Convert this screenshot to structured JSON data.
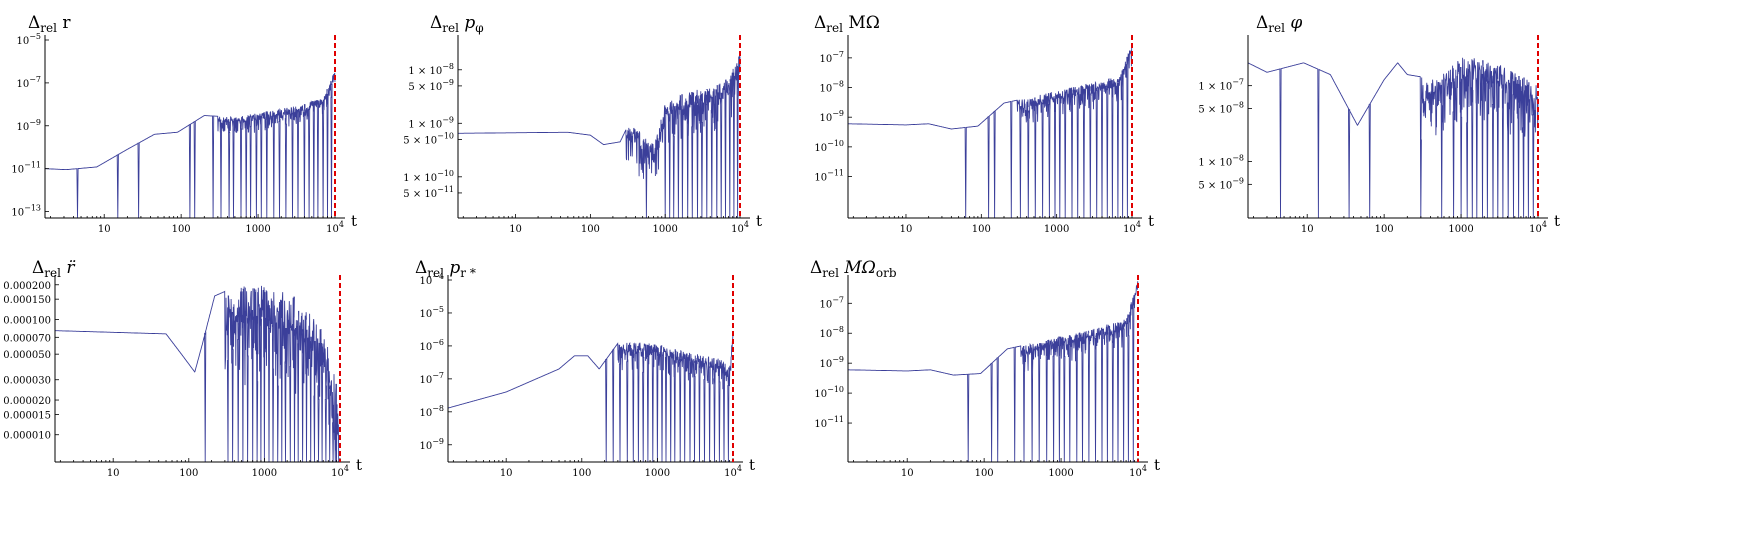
{
  "chart_data": [
    {
      "type": "line",
      "title": {
        "base": "Δ",
        "sub": "rel",
        "symbol": " r"
      },
      "xlabel": "t",
      "xscale": "log",
      "yscale": "log",
      "xlim": [
        1.7,
        10000
      ],
      "ylim": [
        5e-14,
        1e-05
      ],
      "xticks": [
        {
          "v": 10,
          "label": "10"
        },
        {
          "v": 100,
          "label": "100"
        },
        {
          "v": 1000,
          "label": "1000"
        },
        {
          "v": 10000,
          "label": "10",
          "exp": "4"
        }
      ],
      "yticks": [
        {
          "v": 1e-13,
          "label": "10",
          "exp": "−13"
        },
        {
          "v": 1e-11,
          "label": "10",
          "exp": "−11"
        },
        {
          "v": 1e-09,
          "label": "10",
          "exp": "−9"
        },
        {
          "v": 1e-07,
          "label": "10",
          "exp": "−7"
        },
        {
          "v": 1e-05,
          "label": "10",
          "exp": "−5"
        }
      ],
      "marker_x": 10000,
      "series": [
        {
          "dips": [
            4.5,
            15,
            28,
            130,
            150,
            260,
            330,
            420,
            480,
            600,
            700,
            800,
            950,
            1100,
            1300,
            1600,
            1900,
            2300,
            2800,
            3300,
            4000,
            4600,
            5300,
            6000,
            7000,
            8000,
            9000
          ],
          "envelope": [
            [
              1.7,
              1e-11
            ],
            [
              3.2,
              9e-12
            ],
            [
              8,
              1.2e-11
            ],
            [
              20,
              8e-11
            ],
            [
              45,
              4e-10
            ],
            [
              90,
              5e-10
            ],
            [
              200,
              3e-09
            ],
            [
              500,
              2.5e-09
            ],
            [
              1000,
              4e-09
            ],
            [
              3000,
              8e-09
            ],
            [
              7000,
              2e-08
            ],
            [
              10000,
              4e-07
            ]
          ]
        }
      ]
    },
    {
      "type": "line",
      "title": {
        "base": "Δ",
        "sub": "rel",
        "symbol": " p",
        "sym_sub": "φ"
      },
      "xlabel": "t",
      "xscale": "log",
      "yscale": "log",
      "xlim": [
        1.7,
        10000
      ],
      "ylim": [
        1.7e-11,
        3.6e-08
      ],
      "xticks": [
        {
          "v": 10,
          "label": "10"
        },
        {
          "v": 100,
          "label": "100"
        },
        {
          "v": 1000,
          "label": "1000"
        },
        {
          "v": 10000,
          "label": "10",
          "exp": "4"
        }
      ],
      "yticks": [
        {
          "v": 5e-11,
          "label": "5 × 10",
          "exp": "−11"
        },
        {
          "v": 1e-10,
          "label": "1 × 10",
          "exp": "−10"
        },
        {
          "v": 5e-10,
          "label": "5 × 10",
          "exp": "−10"
        },
        {
          "v": 1e-09,
          "label": "1 × 10",
          "exp": "−9"
        },
        {
          "v": 5e-09,
          "label": "5 × 10",
          "exp": "−9"
        },
        {
          "v": 1e-08,
          "label": "1 × 10",
          "exp": "−8"
        }
      ],
      "marker_x": 10000,
      "series": [
        {
          "dips": [
            560,
            1000,
            1150,
            1300,
            1500,
            1700,
            2000,
            2300,
            2700,
            3100,
            3600,
            4200,
            4900,
            5600,
            6400,
            7300,
            8300,
            9300
          ],
          "envelope": [
            [
              1.7,
              6.5e-10
            ],
            [
              50,
              6.8e-10
            ],
            [
              100,
              6e-10
            ],
            [
              150,
              4e-10
            ],
            [
              250,
              4.5e-10
            ],
            [
              350,
              1.2e-09
            ],
            [
              500,
              6e-10
            ],
            [
              700,
              4e-10
            ],
            [
              1000,
              2.5e-09
            ],
            [
              2000,
              4e-09
            ],
            [
              4000,
              5e-09
            ],
            [
              7000,
              7e-09
            ],
            [
              10000,
              2e-08
            ]
          ]
        }
      ]
    },
    {
      "type": "line",
      "title": {
        "base": "Δ",
        "sub": "rel",
        "symbol": " MΩ"
      },
      "xlabel": "t",
      "xscale": "log",
      "yscale": "log",
      "xlim": [
        1.7,
        10000
      ],
      "ylim": [
        4e-13,
        4e-07
      ],
      "xticks": [
        {
          "v": 10,
          "label": "10"
        },
        {
          "v": 100,
          "label": "100"
        },
        {
          "v": 1000,
          "label": "1000"
        },
        {
          "v": 10000,
          "label": "10",
          "exp": "4"
        }
      ],
      "yticks": [
        {
          "v": 1e-11,
          "label": "10",
          "exp": "−11"
        },
        {
          "v": 1e-10,
          "label": "10",
          "exp": "−10"
        },
        {
          "v": 1e-09,
          "label": "10",
          "exp": "−9"
        },
        {
          "v": 1e-08,
          "label": "10",
          "exp": "−8"
        },
        {
          "v": 1e-07,
          "label": "10",
          "exp": "−7"
        }
      ],
      "marker_x": 10000,
      "series": [
        {
          "dips": [
            62,
            125,
            150,
            250,
            330,
            420,
            520,
            650,
            800,
            950,
            1100,
            1300,
            1600,
            1900,
            2300,
            2800,
            3400,
            4000,
            4700,
            5500,
            6500,
            7500,
            8700
          ],
          "envelope": [
            [
              1.7,
              6e-10
            ],
            [
              10,
              5.5e-10
            ],
            [
              20,
              6e-10
            ],
            [
              40,
              4e-10
            ],
            [
              90,
              5e-10
            ],
            [
              200,
              3e-09
            ],
            [
              500,
              5e-09
            ],
            [
              1000,
              8e-09
            ],
            [
              3000,
              1.5e-08
            ],
            [
              7000,
              2.5e-08
            ],
            [
              10000,
              4e-07
            ]
          ]
        }
      ]
    },
    {
      "type": "line",
      "title": {
        "base": "Δ",
        "sub": "rel",
        "symbol": " φ"
      },
      "xlabel": "t",
      "xscale": "log",
      "yscale": "log",
      "xlim": [
        1.7,
        10000
      ],
      "ylim": [
        1.8e-09,
        4e-07
      ],
      "xticks": [
        {
          "v": 10,
          "label": "10"
        },
        {
          "v": 100,
          "label": "100"
        },
        {
          "v": 1000,
          "label": "1000"
        },
        {
          "v": 10000,
          "label": "10",
          "exp": "4"
        }
      ],
      "yticks": [
        {
          "v": 5e-09,
          "label": "5 × 10",
          "exp": "−9"
        },
        {
          "v": 1e-08,
          "label": "1 × 10",
          "exp": "−8"
        },
        {
          "v": 5e-08,
          "label": "5 × 10",
          "exp": "−8"
        },
        {
          "v": 1e-07,
          "label": "1 × 10",
          "exp": "−7"
        }
      ],
      "marker_x": 10000,
      "series": [
        {
          "dips": [
            4.5,
            14,
            35,
            65,
            300,
            560,
            800,
            1000,
            1200,
            1400,
            1600,
            1900,
            2200,
            2600,
            3000,
            3500,
            4100,
            4800,
            5600,
            6500,
            7500,
            8700
          ],
          "envelope": [
            [
              1.7,
              2e-07
            ],
            [
              3,
              1.5e-07
            ],
            [
              9,
              2e-07
            ],
            [
              20,
              1.4e-07
            ],
            [
              45,
              3e-08
            ],
            [
              100,
              1.2e-07
            ],
            [
              150,
              2e-07
            ],
            [
              200,
              1.4e-07
            ],
            [
              500,
              1.2e-07
            ],
            [
              1000,
              2.5e-07
            ],
            [
              3000,
              2e-07
            ],
            [
              10000,
              1e-07
            ]
          ]
        }
      ]
    },
    {
      "type": "line",
      "title": {
        "base": "Δ",
        "sub": "rel",
        "symbol": " r̈"
      },
      "xlabel": "t",
      "xscale": "log",
      "yscale": "log",
      "xlim": [
        1.7,
        10000
      ],
      "ylim": [
        5.8e-06,
        0.00022
      ],
      "xticks": [
        {
          "v": 10,
          "label": "10"
        },
        {
          "v": 100,
          "label": "100"
        },
        {
          "v": 1000,
          "label": "1000"
        },
        {
          "v": 10000,
          "label": "10",
          "exp": "4"
        }
      ],
      "yticks": [
        {
          "v": 1e-05,
          "label": "0.000010"
        },
        {
          "v": 1.5e-05,
          "label": "0.000015"
        },
        {
          "v": 2e-05,
          "label": "0.000020"
        },
        {
          "v": 3e-05,
          "label": "0.000030"
        },
        {
          "v": 5e-05,
          "label": "0.000050"
        },
        {
          "v": 7e-05,
          "label": "0.000070"
        },
        {
          "v": 0.0001,
          "label": "0.000100"
        },
        {
          "v": 0.00015,
          "label": "0.000150"
        },
        {
          "v": 0.0002,
          "label": "0.000200"
        }
      ],
      "marker_x": 10000,
      "series": [
        {
          "dips": [
            165,
            330,
            380,
            450,
            520,
            600,
            700,
            800,
            900,
            1000,
            1150,
            1300,
            1500,
            1700,
            1900,
            2200,
            2500,
            2800,
            3200,
            3600,
            4100,
            4600,
            5200,
            5800,
            6500,
            7300,
            8100,
            9000
          ],
          "envelope": [
            [
              1.7,
              8e-05
            ],
            [
              50,
              7.5e-05
            ],
            [
              80,
              5e-05
            ],
            [
              120,
              3.5e-05
            ],
            [
              150,
              6e-05
            ],
            [
              220,
              0.00016
            ],
            [
              400,
              0.00019
            ],
            [
              800,
              0.0002
            ],
            [
              1500,
              0.00018
            ],
            [
              3000,
              0.00015
            ],
            [
              6000,
              8e-05
            ],
            [
              9000,
              3e-05
            ],
            [
              10000,
              6e-06
            ]
          ]
        }
      ]
    },
    {
      "type": "line",
      "title": {
        "base": "Δ",
        "sub": "rel",
        "symbol": " p",
        "sym_sub": "r *"
      },
      "xlabel": "t",
      "xscale": "log",
      "yscale": "log",
      "xlim": [
        1.7,
        10000
      ],
      "ylim": [
        3e-10,
        0.0001
      ],
      "xticks": [
        {
          "v": 10,
          "label": "10"
        },
        {
          "v": 100,
          "label": "100"
        },
        {
          "v": 1000,
          "label": "1000"
        },
        {
          "v": 10000,
          "label": "10",
          "exp": "4"
        }
      ],
      "yticks": [
        {
          "v": 1e-09,
          "label": "10",
          "exp": "−9"
        },
        {
          "v": 1e-08,
          "label": "10",
          "exp": "−8"
        },
        {
          "v": 1e-07,
          "label": "10",
          "exp": "−7"
        },
        {
          "v": 1e-06,
          "label": "10",
          "exp": "−6"
        },
        {
          "v": 1e-05,
          "label": "10",
          "exp": "−5"
        },
        {
          "v": 0.0001,
          "label": "10",
          "exp": "−4"
        }
      ],
      "marker_x": 10000,
      "series": [
        {
          "dips": [
            210,
            260,
            320,
            400,
            480,
            560,
            650,
            750,
            870,
            1000,
            1150,
            1300,
            1500,
            1700,
            2000,
            2300,
            2700,
            3100,
            3600,
            4200,
            4900,
            5700,
            6600,
            7600,
            8700
          ],
          "envelope": [
            [
              1.7,
              1.3e-08
            ],
            [
              10,
              4e-08
            ],
            [
              50,
              2e-07
            ],
            [
              80,
              5e-07
            ],
            [
              120,
              5e-07
            ],
            [
              170,
              2e-07
            ],
            [
              300,
              1.2e-06
            ],
            [
              600,
              1.3e-06
            ],
            [
              1000,
              1.1e-06
            ],
            [
              3000,
              6e-07
            ],
            [
              7000,
              4e-07
            ],
            [
              9000,
              2e-07
            ],
            [
              10000,
              3e-06
            ]
          ]
        }
      ]
    },
    {
      "type": "line",
      "title": {
        "base": "Δ",
        "sub": "rel",
        "symbol": " MΩ",
        "sym_sub": "orb"
      },
      "xlabel": "t",
      "xscale": "log",
      "yscale": "log",
      "xlim": [
        1.7,
        10000
      ],
      "ylim": [
        5e-13,
        6e-07
      ],
      "xticks": [
        {
          "v": 10,
          "label": "10"
        },
        {
          "v": 100,
          "label": "100"
        },
        {
          "v": 1000,
          "label": "1000"
        },
        {
          "v": 10000,
          "label": "10",
          "exp": "4"
        }
      ],
      "yticks": [
        {
          "v": 1e-11,
          "label": "10",
          "exp": "−11"
        },
        {
          "v": 1e-10,
          "label": "10",
          "exp": "−10"
        },
        {
          "v": 1e-09,
          "label": "10",
          "exp": "−9"
        },
        {
          "v": 1e-08,
          "label": "10",
          "exp": "−8"
        },
        {
          "v": 1e-07,
          "label": "10",
          "exp": "−7"
        }
      ],
      "marker_x": 10000,
      "series": [
        {
          "dips": [
            62,
            125,
            150,
            250,
            330,
            420,
            520,
            650,
            800,
            950,
            1100,
            1300,
            1600,
            1900,
            2300,
            2800,
            3400,
            4000,
            4700,
            5500,
            6500,
            7500,
            8700
          ],
          "envelope": [
            [
              1.7,
              6e-10
            ],
            [
              10,
              5.5e-10
            ],
            [
              20,
              6e-10
            ],
            [
              40,
              4e-10
            ],
            [
              90,
              4.5e-10
            ],
            [
              200,
              3e-09
            ],
            [
              500,
              5e-09
            ],
            [
              1000,
              8e-09
            ],
            [
              3000,
              1.5e-08
            ],
            [
              7000,
              3e-08
            ],
            [
              10000,
              6e-07
            ]
          ]
        }
      ]
    }
  ]
}
